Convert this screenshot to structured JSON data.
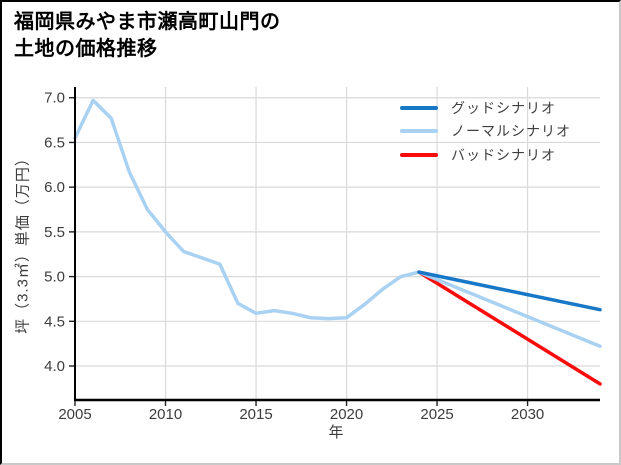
{
  "chart_data": {
    "type": "line",
    "title_lines": [
      "福岡県みやま市瀬高町山門の",
      "土地の価格推移"
    ],
    "xlabel": "年",
    "ylabel": "坪（3.3㎡）単価（万円）",
    "x_ticks": [
      2005,
      2010,
      2015,
      2020,
      2025,
      2030
    ],
    "y_ticks": [
      7.0,
      6.5,
      6.0,
      5.5,
      5.0,
      4.5,
      4.0
    ],
    "xlim": [
      2005,
      2034
    ],
    "ylim": [
      3.62,
      7.12
    ],
    "grid": true,
    "legend_position": "upper right",
    "colors": {
      "grid": "#d9d9d9",
      "axis": "#000000",
      "tick_text": "#3c3c3c"
    },
    "series": [
      {
        "id": "price-history",
        "legend": false,
        "label": "",
        "color": "#a9d1f2",
        "x": [
          2005,
          2006,
          2007,
          2008,
          2009,
          2010,
          2011,
          2012,
          2013,
          2014,
          2015,
          2016,
          2017,
          2018,
          2019,
          2020,
          2021,
          2022,
          2023,
          2024
        ],
        "y": [
          6.55,
          6.97,
          6.77,
          6.17,
          5.75,
          5.5,
          5.28,
          5.21,
          5.14,
          4.7,
          4.59,
          4.62,
          4.59,
          4.54,
          4.53,
          4.54,
          4.69,
          4.86,
          5.0,
          5.05
        ]
      },
      {
        "id": "good-scenario",
        "legend": true,
        "label": "グッドシナリオ",
        "color": "#1878c8",
        "x": [
          2024,
          2034
        ],
        "y": [
          5.05,
          4.63
        ]
      },
      {
        "id": "normal-scenario",
        "legend": true,
        "label": "ノーマルシナリオ",
        "color": "#a9d1f2",
        "x": [
          2024,
          2034
        ],
        "y": [
          5.05,
          4.22
        ]
      },
      {
        "id": "bad-scenario",
        "legend": true,
        "label": "バッドシナリオ",
        "color": "#fa0a0a",
        "x": [
          2024,
          2034
        ],
        "y": [
          5.05,
          3.8
        ]
      }
    ]
  }
}
